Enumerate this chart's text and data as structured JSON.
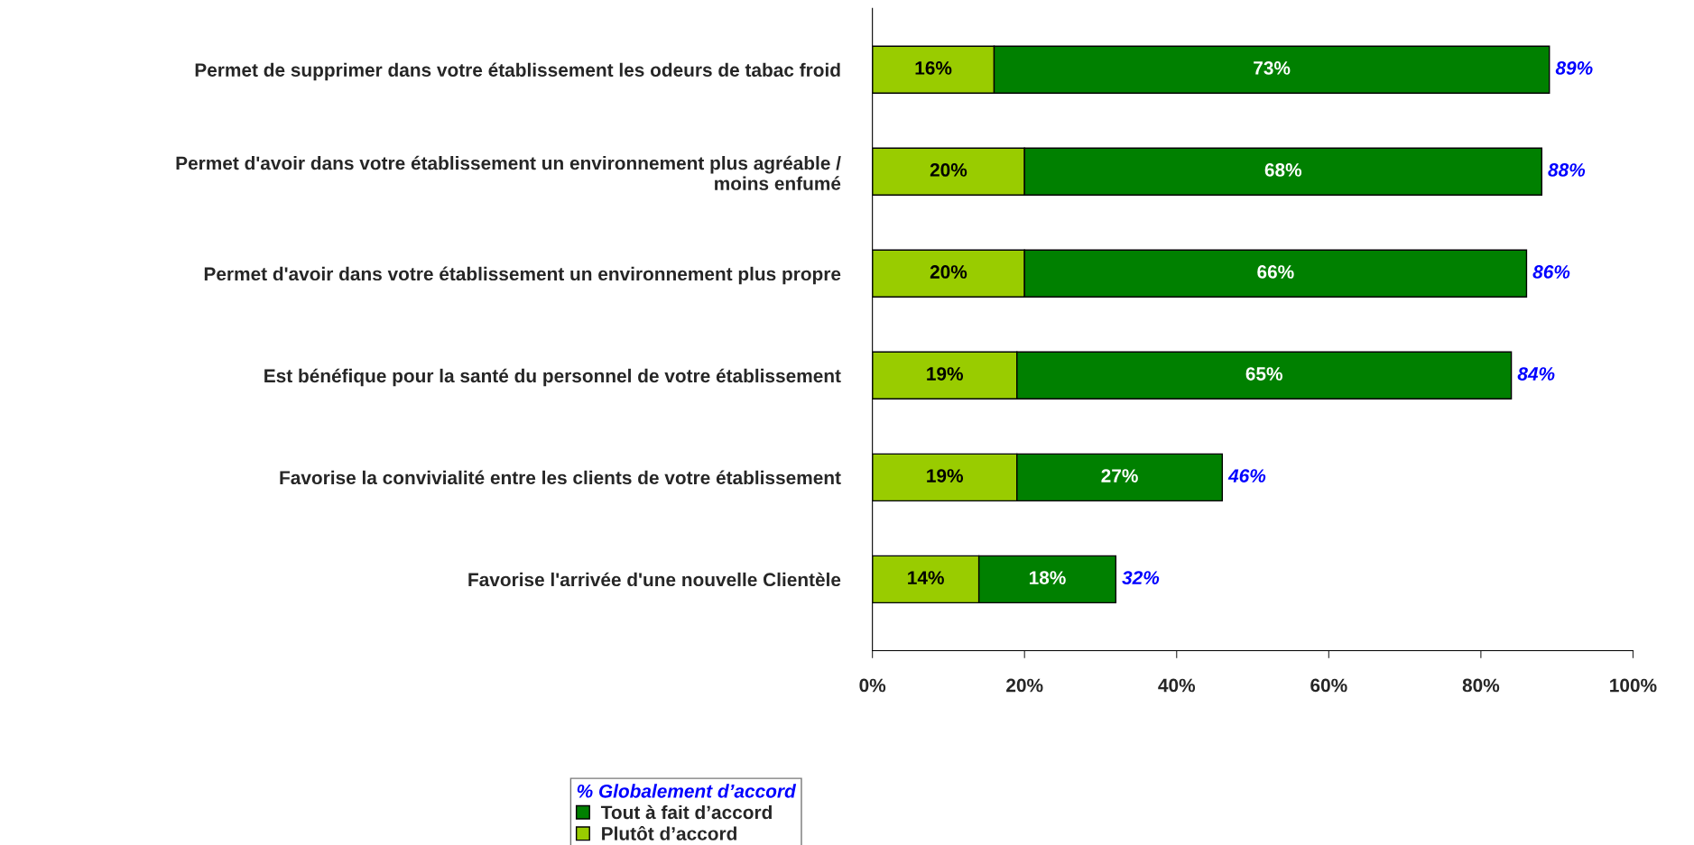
{
  "chart_data": {
    "type": "bar",
    "orientation": "horizontal",
    "stacked": true,
    "categories": [
      "Permet de supprimer dans votre établissement les odeurs de tabac froid",
      "Permet d'avoir dans votre établissement un environnement plus agréable /\nmoins enfumé",
      "Permet d'avoir dans votre établissement un environnement plus propre",
      "Est bénéfique pour la santé du personnel de votre établissement",
      "Favorise la convivialité entre les clients de votre établissement",
      "Favorise l'arrivée d'une nouvelle Clientèle"
    ],
    "series": [
      {
        "name": "Plutôt d’accord",
        "color": "#99cc00",
        "values": [
          16,
          20,
          20,
          19,
          19,
          14
        ],
        "value_labels": [
          "16%",
          "20%",
          "20%",
          "19%",
          "19%",
          "14%"
        ]
      },
      {
        "name": "Tout à fait d’accord",
        "color": "#008000",
        "values": [
          73,
          68,
          66,
          65,
          27,
          18
        ],
        "value_labels": [
          "73%",
          "68%",
          "66%",
          "65%",
          "27%",
          "18%"
        ]
      }
    ],
    "totals": [
      "89%",
      "88%",
      "86%",
      "84%",
      "46%",
      "32%"
    ],
    "legend_title": "% Globalement d’accord",
    "legend": "bottom",
    "grid": false,
    "xlim": [
      0,
      100
    ],
    "xticks": [
      {
        "value": 0,
        "label": "0%"
      },
      {
        "value": 20,
        "label": "20%"
      },
      {
        "value": 40,
        "label": "40%"
      },
      {
        "value": 60,
        "label": "60%"
      },
      {
        "value": 80,
        "label": "80%"
      },
      {
        "value": 100,
        "label": "100%"
      }
    ]
  }
}
